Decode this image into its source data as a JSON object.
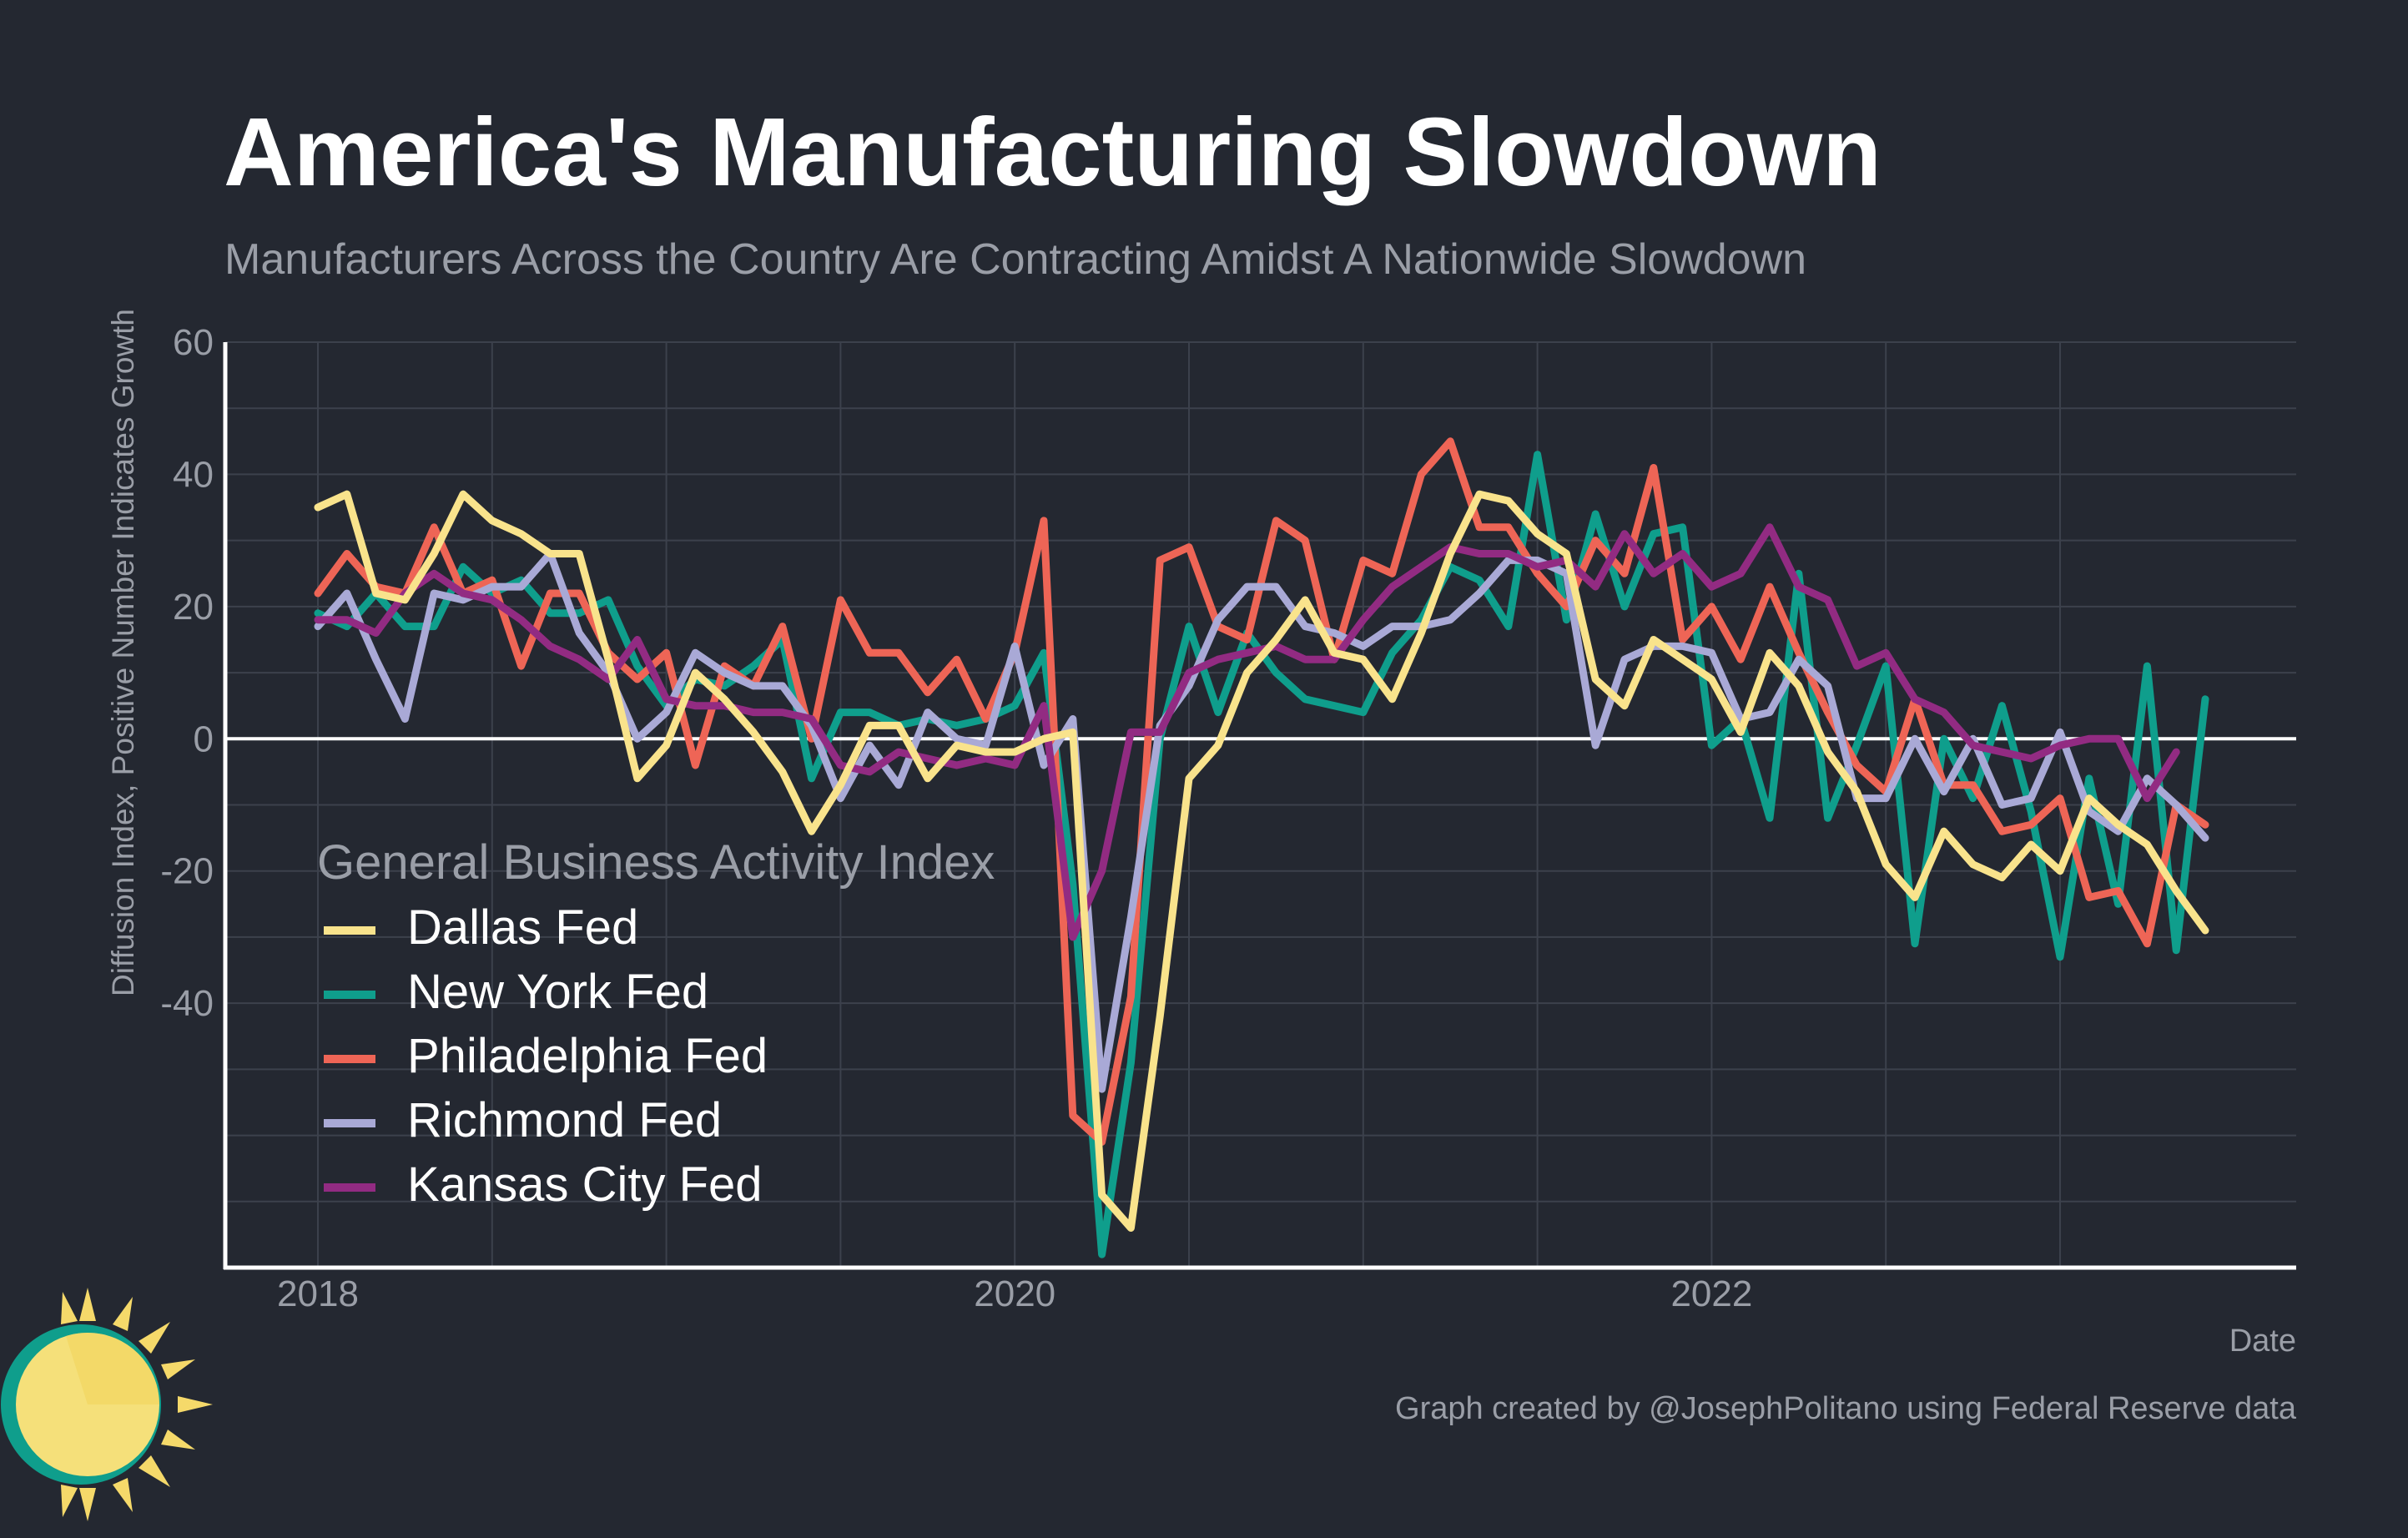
{
  "header": {
    "title": "America's Manufacturing Slowdown",
    "subtitle": "Manufacturers Across the Country Are Contracting Amidst A Nationwide Slowdown"
  },
  "caption": "Graph created by @JosephPolitano using Federal Reserve data",
  "colors": {
    "background": "#242831",
    "grid": "#3c414c",
    "axis": "#ffffff",
    "muted_text": "#9a9ea7",
    "logo_sun": "#f5e07a",
    "logo_ring": "#0f9e8c"
  },
  "chart_data": {
    "type": "line",
    "title": "America's Manufacturing Slowdown",
    "subtitle": "Manufacturers Across the Country Are Contracting Amidst A Nationwide Slowdown",
    "xlabel": "Date",
    "ylabel": "Diffusion Index, Positive Number Indicates Growth",
    "x_start": "2018-01",
    "x_tick_labels": [
      "2018",
      "2020",
      "2022"
    ],
    "y_tick_labels": [
      "60",
      "40",
      "20",
      "0",
      "-20",
      "-40"
    ],
    "ylim": [
      -80,
      60
    ],
    "grid": true,
    "legend_title": "General Business Activity Index",
    "legend_position": "bottom-left",
    "series": [
      {
        "name": "Dallas Fed",
        "color": "#f9e38c",
        "values": [
          35,
          37,
          22,
          21,
          28,
          37,
          33,
          31,
          28,
          28,
          12,
          -6,
          -1,
          10,
          6,
          1,
          -5,
          -14,
          -7,
          2,
          2,
          -6,
          -1,
          -2,
          -2,
          0,
          1,
          -69,
          -74,
          -42,
          -6,
          -1,
          10,
          15,
          21,
          13,
          12,
          6,
          16,
          28,
          37,
          36,
          31,
          28,
          9,
          5,
          15,
          12,
          9,
          1,
          13,
          8,
          -2,
          -8,
          -19,
          -24,
          -14,
          -19,
          -21,
          -16,
          -20,
          -9,
          -13,
          -16,
          -23,
          -29
        ]
      },
      {
        "name": "New York Fed",
        "color": "#0f9e8c",
        "values": [
          19,
          17,
          22,
          17,
          17,
          26,
          22,
          24,
          19,
          19,
          21,
          11,
          5,
          9,
          8,
          11,
          15,
          -6,
          4,
          4,
          2,
          3,
          2,
          3,
          5,
          13,
          -22,
          -78,
          -49,
          0,
          17,
          4,
          16,
          10,
          6,
          5,
          4,
          13,
          18,
          26,
          24,
          17,
          43,
          18,
          34,
          20,
          31,
          32,
          -1,
          3,
          -12,
          25,
          -12,
          -1,
          11,
          -31,
          0,
          -9,
          5,
          -11,
          -33,
          -6,
          -25,
          11,
          -32,
          6
        ]
      },
      {
        "name": "Philadelphia Fed",
        "color": "#ee6556",
        "values": [
          22,
          28,
          23,
          22,
          32,
          22,
          24,
          11,
          22,
          22,
          13,
          9,
          13,
          -4,
          11,
          8,
          17,
          0,
          21,
          13,
          13,
          7,
          12,
          3,
          13,
          33,
          -57,
          -61,
          -39,
          27,
          29,
          17,
          15,
          33,
          30,
          12,
          27,
          25,
          40,
          45,
          32,
          32,
          25,
          20,
          30,
          25,
          41,
          15,
          20,
          12,
          23,
          13,
          4,
          -4,
          -8,
          6,
          -7,
          -7,
          -14,
          -13,
          -9,
          -24,
          -23,
          -31,
          -10,
          -13
        ]
      },
      {
        "name": "Richmond Fed",
        "color": "#a9a9d6",
        "values": [
          17,
          22,
          12,
          3,
          22,
          21,
          23,
          23,
          28,
          16,
          10,
          0,
          4,
          13,
          10,
          8,
          8,
          2,
          -9,
          -1,
          -7,
          4,
          0,
          -1,
          14,
          -4,
          3,
          -53,
          -27,
          2,
          8,
          18,
          23,
          23,
          17,
          16,
          14,
          17,
          17,
          18,
          22,
          27,
          27,
          25,
          -1,
          12,
          14,
          14,
          13,
          3,
          4,
          12,
          8,
          -9,
          -9,
          0,
          -8,
          0,
          -10,
          -9,
          1,
          -11,
          -14,
          -6,
          -10,
          -15
        ]
      },
      {
        "name": "Kansas City Fed",
        "color": "#922b82",
        "values": [
          18,
          18,
          16,
          22,
          25,
          22,
          21,
          18,
          14,
          12,
          9,
          15,
          6,
          5,
          5,
          4,
          4,
          3,
          -4,
          -5,
          -2,
          -3,
          -4,
          -3,
          -4,
          5,
          -30,
          -20,
          1,
          1,
          10,
          12,
          13,
          14,
          12,
          12,
          18,
          23,
          26,
          29,
          28,
          28,
          26,
          27,
          23,
          31,
          25,
          28,
          23,
          25,
          32,
          23,
          21,
          11,
          13,
          6,
          4,
          -1,
          -2,
          -3,
          -1,
          0,
          0,
          -9,
          -2
        ]
      }
    ]
  }
}
